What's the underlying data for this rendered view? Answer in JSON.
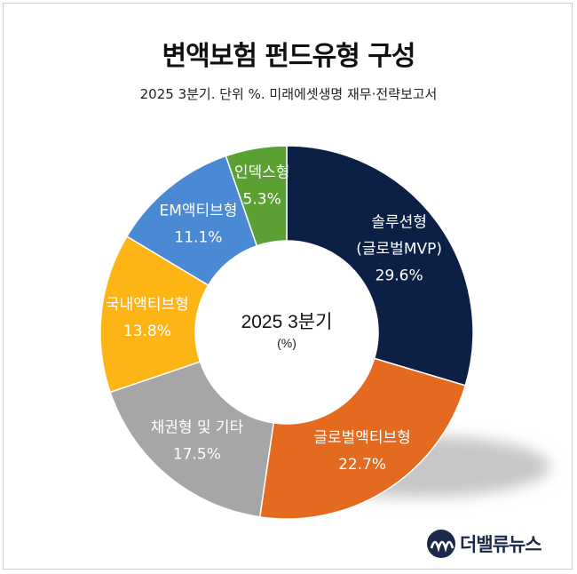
{
  "title": "변액보험 펀드유형 구성",
  "subtitle": "2025 3분기. 단위 %. 미래에셋생명 재무·전략보고서",
  "center": {
    "line1": "2025 3분기",
    "line2": "(%)"
  },
  "logo": {
    "text": "더밸류뉴스",
    "icon": "wave-logo-icon"
  },
  "chart_data": {
    "type": "pie",
    "variant": "donut",
    "unit": "%",
    "start": "12 o'clock, clockwise",
    "categories": [
      "솔루션형",
      "글로벌액티브형",
      "채권형 및 기타",
      "국내액티브형",
      "EM액티브형",
      "인덱스형"
    ],
    "display_labels": [
      [
        "솔루션형",
        "(글로벌MVP)",
        "29.6%"
      ],
      [
        "글로벌액티브형",
        "22.7%"
      ],
      [
        "채권형 및 기타",
        "17.5%"
      ],
      [
        "국내액티브형",
        "13.8%"
      ],
      [
        "EM액티브형",
        "11.1%"
      ],
      [
        "인덱스형",
        "5.3%"
      ]
    ],
    "values": [
      29.6,
      22.7,
      17.5,
      13.8,
      11.1,
      5.3
    ],
    "colors": [
      "#0c1f45",
      "#e46a1f",
      "#a6a6a6",
      "#fdb515",
      "#4a89d3",
      "#5aa032"
    ],
    "label_colors": [
      "#ffffff",
      "#ffffff",
      "#ffffff",
      "#ffffff",
      "#ffffff",
      "#ffffff"
    ]
  }
}
